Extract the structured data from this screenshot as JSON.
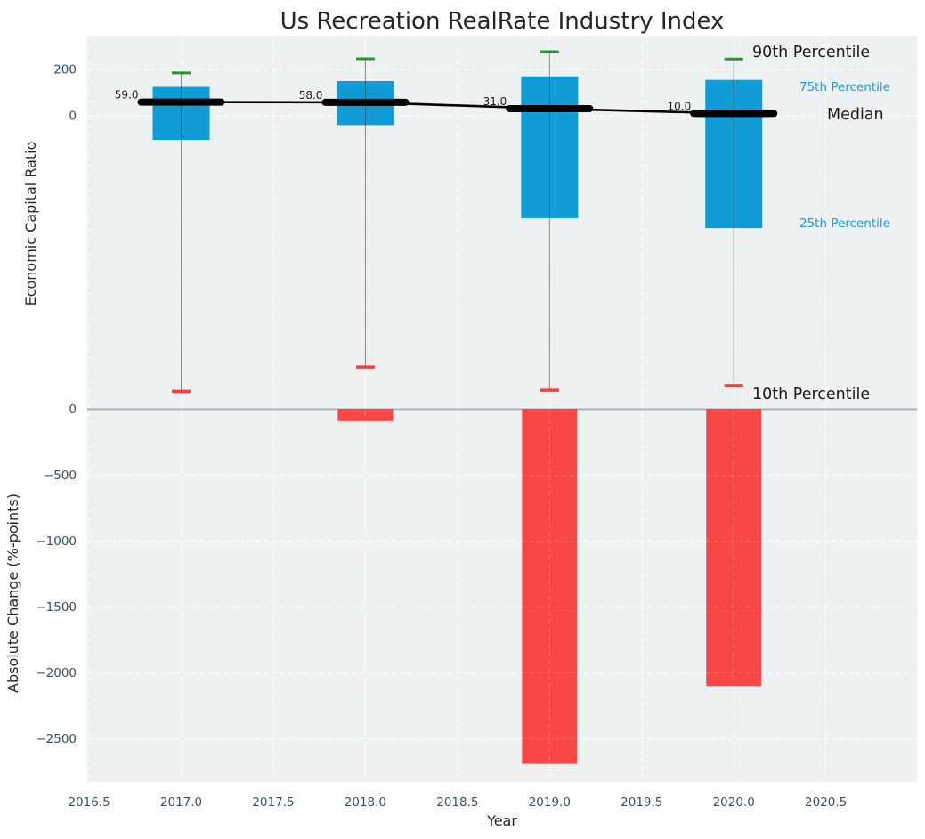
{
  "colors": {
    "plot_bg": "#edf1f2",
    "grid": "#ffffff",
    "box_blue": "#0b9bd6",
    "blue_label": "#1b9cd8",
    "bar_red": "#fa3c3c",
    "cap_green": "#259925",
    "median_black": "#000000",
    "zero_line": "#b0b3b5",
    "tick_label": "#3b4d63",
    "text_dark": "#1a1a1a"
  },
  "chart_data": {
    "type": "combo-boxplot-bar",
    "title": "Us Recreation RealRate Industry Index",
    "x": {
      "label": "Year",
      "ticks": [
        "2016.5",
        "2017.0",
        "2017.5",
        "2018.0",
        "2018.5",
        "2019.0",
        "2019.5",
        "2020.0",
        "2020.5"
      ],
      "tick_values": [
        2016.5,
        2017.0,
        2017.5,
        2018.0,
        2018.5,
        2019.0,
        2019.5,
        2020.0,
        2020.5
      ],
      "xlim": [
        2016.49,
        2020.99
      ]
    },
    "top_panel": {
      "ylabel": "Economic Capital Ratio",
      "yticks": [
        "200",
        "0"
      ],
      "ytick_values": [
        200,
        0
      ],
      "ylim": [
        -1260,
        346
      ],
      "grid": true,
      "boxes": [
        {
          "year": 2017,
          "p90": 185,
          "p75": 125,
          "median": 59.0,
          "median_label": "59.0",
          "p25": -104,
          "p10": -1190
        },
        {
          "year": 2018,
          "p90": 246,
          "p75": 150,
          "median": 58.0,
          "median_label": "58.0",
          "p25": -40,
          "p10": -1085
        },
        {
          "year": 2019,
          "p90": 277,
          "p75": 170,
          "median": 31.0,
          "median_label": "31.0",
          "p25": -442,
          "p10": -1185
        },
        {
          "year": 2020,
          "p90": 245,
          "p75": 155,
          "median": 10.0,
          "median_label": "10.0",
          "p25": -485,
          "p10": -1165
        }
      ]
    },
    "bottom_panel": {
      "ylabel": "Absolute Change (%-points)",
      "yticks": [
        "0",
        "−500",
        "−1000",
        "−1500",
        "−2000",
        "−2500"
      ],
      "ytick_values": [
        0,
        -500,
        -1000,
        -1500,
        -2000,
        -2500
      ],
      "ylim": [
        -2820,
        20
      ],
      "grid": true,
      "bars": [
        {
          "year": 2018,
          "value": -90
        },
        {
          "year": 2019,
          "value": -2690
        },
        {
          "year": 2020,
          "value": -2100
        }
      ]
    },
    "annotations": [
      {
        "text": "90th Percentile",
        "style": "big"
      },
      {
        "text": "75th Percentile",
        "style": "small-blue"
      },
      {
        "text": "Median",
        "style": "big"
      },
      {
        "text": "25th Percentile",
        "style": "small-blue"
      },
      {
        "text": "10th Percentile",
        "style": "big"
      }
    ]
  }
}
